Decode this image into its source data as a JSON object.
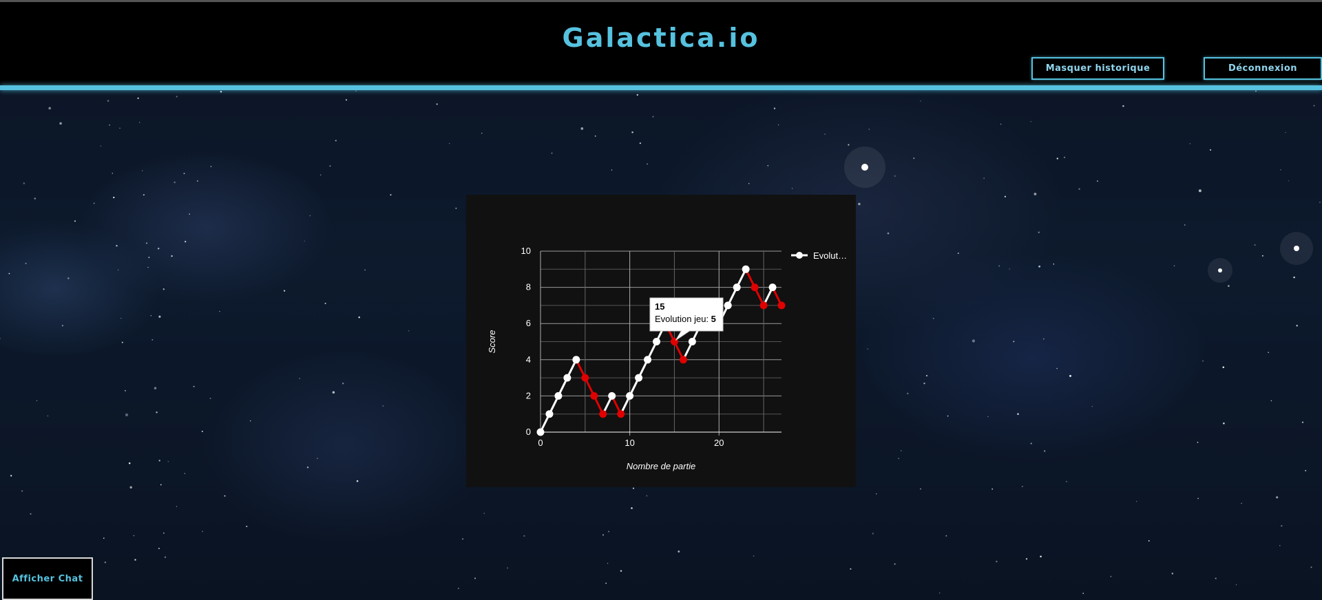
{
  "app": {
    "title": "Galactica.io"
  },
  "header": {
    "history_button": "Masquer historique",
    "logout_button": "Déconnexion"
  },
  "chat": {
    "button_label": "Afficher Chat"
  },
  "colors": {
    "accent": "#56c2df",
    "panel_bg": "#111111",
    "line": "#ffffff",
    "down_segment": "#e00000"
  },
  "chart_data": {
    "type": "line",
    "xlabel": "Nombre de partie",
    "ylabel": "Score",
    "xlim": [
      0,
      27
    ],
    "ylim": [
      0,
      10
    ],
    "x_ticks": [
      0,
      10,
      20
    ],
    "y_ticks": [
      0,
      2,
      4,
      6,
      8,
      10
    ],
    "grid": true,
    "legend_position": "right",
    "series": [
      {
        "name": "Evolut…",
        "x": [
          0,
          1,
          2,
          3,
          4,
          5,
          6,
          7,
          8,
          9,
          10,
          11,
          12,
          13,
          14,
          15,
          16,
          17,
          18,
          19,
          20,
          21,
          22,
          23,
          24,
          25,
          26,
          27
        ],
        "values": [
          0,
          1,
          2,
          3,
          4,
          3,
          2,
          1,
          2,
          1,
          2,
          3,
          4,
          5,
          6,
          5,
          4,
          5,
          6,
          7,
          6,
          7,
          8,
          9,
          8,
          7,
          8,
          7
        ]
      }
    ],
    "tooltip": {
      "title": "15",
      "label": "Evolution jeu: ",
      "value": "5"
    }
  }
}
